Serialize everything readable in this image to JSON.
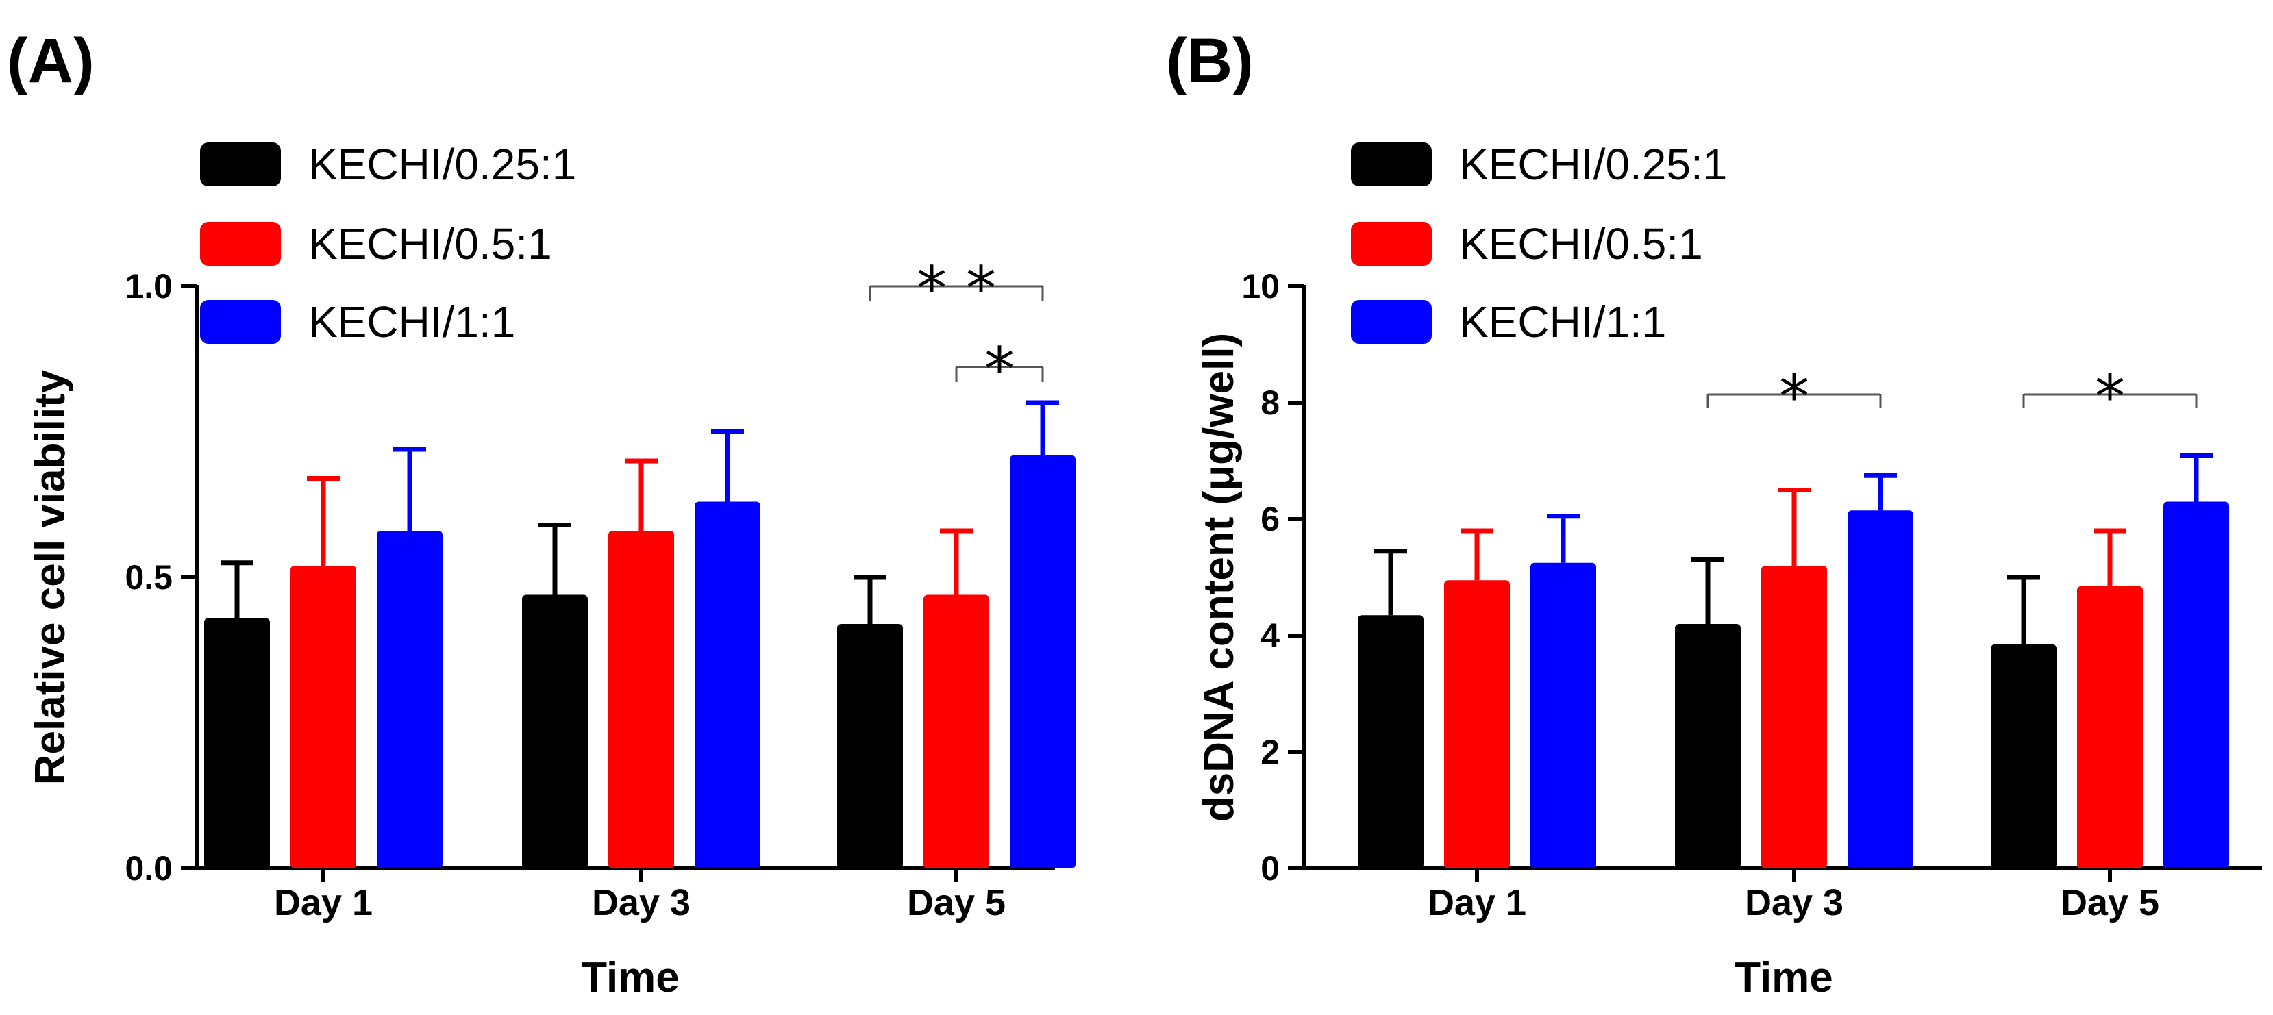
{
  "chart_data": [
    {
      "panel_label": "(A)",
      "type": "bar",
      "categories": [
        "Day 1",
        "Day 3",
        "Day 5"
      ],
      "series": [
        {
          "name": "KECHI/0.25:1",
          "color": "#000000",
          "values": [
            0.43,
            0.47,
            0.42
          ],
          "errors": [
            0.095,
            0.12,
            0.08
          ]
        },
        {
          "name": "KECHI/0.5:1",
          "color": "#ff0000",
          "values": [
            0.52,
            0.58,
            0.47
          ],
          "errors": [
            0.15,
            0.12,
            0.11
          ]
        },
        {
          "name": "KECHI/1:1",
          "color": "#0000ff",
          "values": [
            0.58,
            0.63,
            0.71
          ],
          "errors": [
            0.14,
            0.12,
            0.09
          ]
        }
      ],
      "xlabel": "Time",
      "ylabel": "Relative cell viability",
      "ylim": [
        0,
        1
      ],
      "yticks": [
        0,
        0.5,
        1
      ],
      "ytick_labels": [
        "0.0",
        "0.5",
        "1.0"
      ],
      "legend_position": "top-left",
      "grid": false,
      "significance": [
        {
          "category": "Day 5",
          "from_series": 0,
          "to_series": 2,
          "label": "* *"
        },
        {
          "category": "Day 5",
          "from_series": 1,
          "to_series": 2,
          "label": "*"
        }
      ]
    },
    {
      "panel_label": "(B)",
      "type": "bar",
      "categories": [
        "Day 1",
        "Day 3",
        "Day 5"
      ],
      "series": [
        {
          "name": "KECHI/0.25:1",
          "color": "#000000",
          "values": [
            4.35,
            4.2,
            3.85
          ],
          "errors": [
            1.1,
            1.1,
            1.15
          ]
        },
        {
          "name": "KECHI/0.5:1",
          "color": "#ff0000",
          "values": [
            4.95,
            5.2,
            4.85
          ],
          "errors": [
            0.85,
            1.3,
            0.95
          ]
        },
        {
          "name": "KECHI/1:1",
          "color": "#0000ff",
          "values": [
            5.25,
            6.15,
            6.3
          ],
          "errors": [
            0.8,
            0.6,
            0.8
          ]
        }
      ],
      "xlabel": "Time",
      "ylabel": "dsDNA content  (μg/well)",
      "ylim": [
        0,
        10
      ],
      "yticks": [
        0,
        2,
        4,
        6,
        8,
        10
      ],
      "ytick_labels": [
        "0",
        "2",
        "4",
        "6",
        "8",
        "10"
      ],
      "legend_position": "top-left",
      "grid": false,
      "significance": [
        {
          "category": "Day 3",
          "from_series": 0,
          "to_series": 2,
          "label": "*"
        },
        {
          "category": "Day 5",
          "from_series": 0,
          "to_series": 2,
          "label": "*"
        }
      ]
    }
  ]
}
